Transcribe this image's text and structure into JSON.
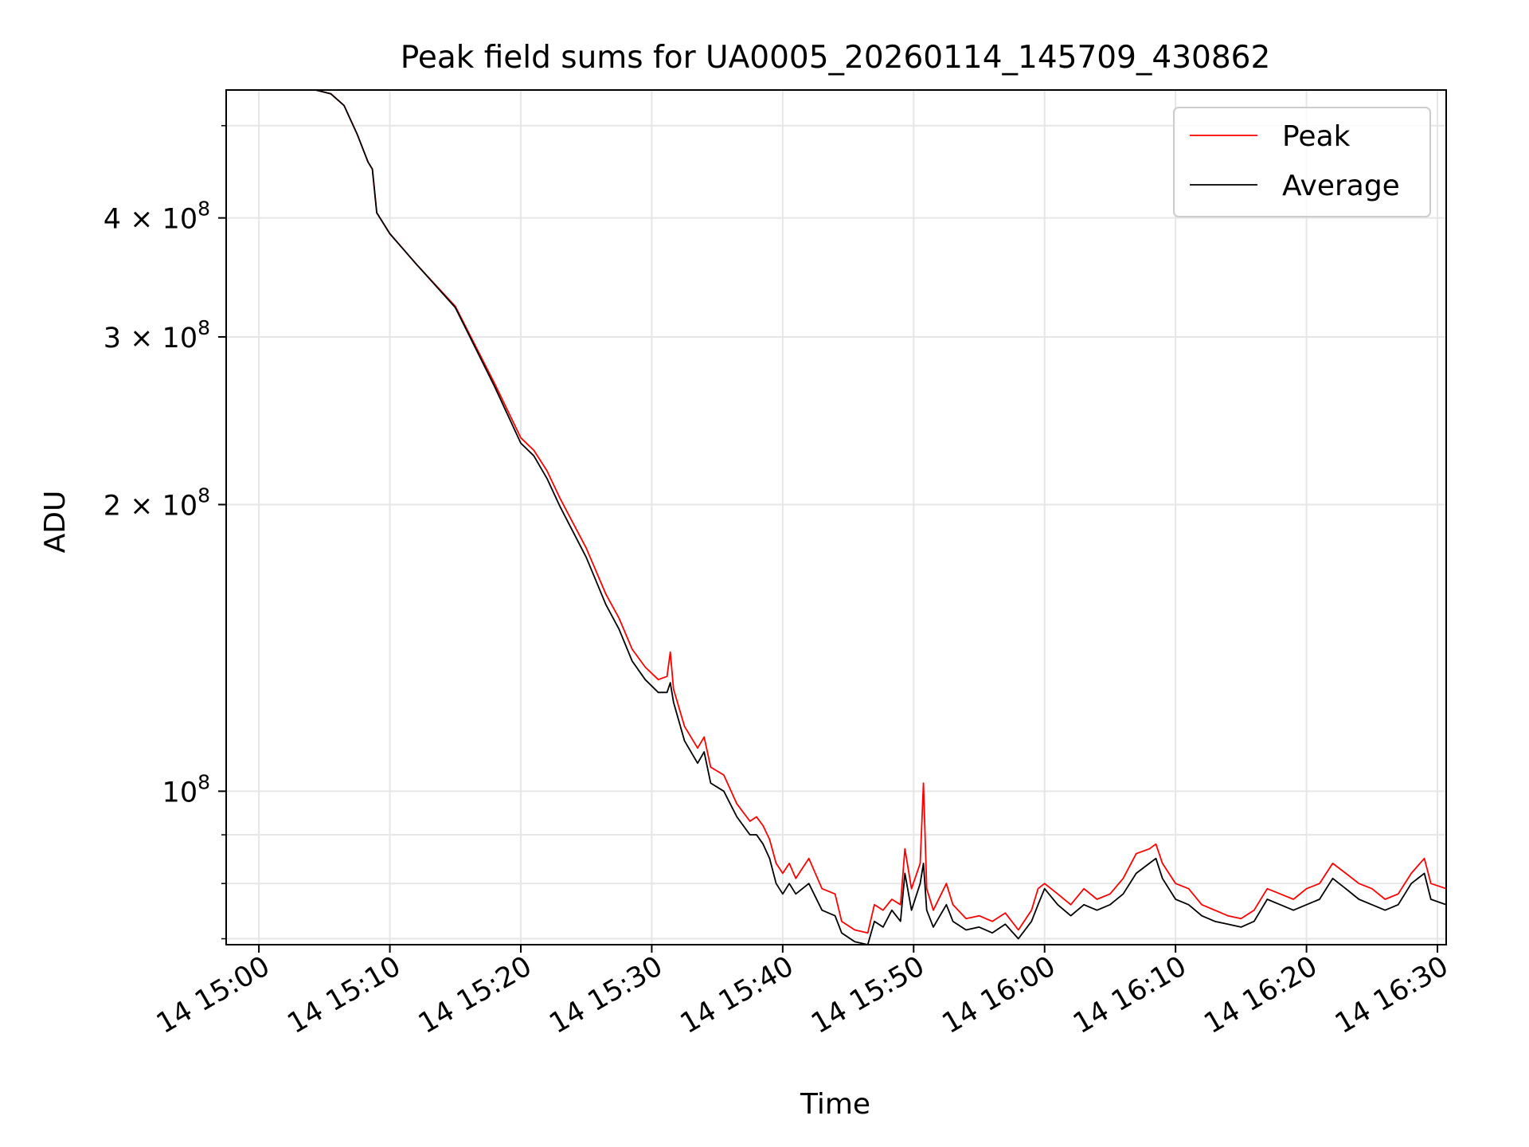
{
  "chart_data": {
    "type": "line",
    "title": "Peak field sums for UA0005_20260114_145709_430862",
    "xlabel": "Time",
    "ylabel": "ADU",
    "x_unit": "datetime",
    "xlim": [
      "2026-01-14T14:57:30",
      "2026-01-14T16:30:40"
    ],
    "ylim": [
      69000000,
      545000000
    ],
    "yscale": "log",
    "grid": true,
    "legend_placement": "top-right",
    "x_ticks": [
      {
        "value": "2026-01-14T15:00:00",
        "label": "14 15:00"
      },
      {
        "value": "2026-01-14T15:10:00",
        "label": "14 15:10"
      },
      {
        "value": "2026-01-14T15:20:00",
        "label": "14 15:20"
      },
      {
        "value": "2026-01-14T15:30:00",
        "label": "14 15:30"
      },
      {
        "value": "2026-01-14T15:40:00",
        "label": "14 15:40"
      },
      {
        "value": "2026-01-14T15:50:00",
        "label": "14 15:50"
      },
      {
        "value": "2026-01-14T16:00:00",
        "label": "14 16:00"
      },
      {
        "value": "2026-01-14T16:10:00",
        "label": "14 16:10"
      },
      {
        "value": "2026-01-14T16:20:00",
        "label": "14 16:20"
      },
      {
        "value": "2026-01-14T16:30:00",
        "label": "14 16:30"
      }
    ],
    "y_major_ticks": [
      {
        "value": 100000000,
        "base": "10",
        "exp": "8"
      },
      {
        "value": 200000000,
        "base": "2 × 10",
        "exp": "8"
      },
      {
        "value": 300000000,
        "base": "3 × 10",
        "exp": "8"
      },
      {
        "value": 400000000,
        "base": "4 × 10",
        "exp": "8"
      }
    ],
    "y_minor_ticks": [
      70000000,
      80000000,
      90000000,
      500000000
    ],
    "series": [
      {
        "name": "Peak",
        "color": "#ff0000",
        "points": [
          [
            "2026-01-14T14:57:30",
            545000000
          ],
          [
            "2026-01-14T15:04:20",
            545000000
          ],
          [
            "2026-01-14T15:05:30",
            540000000
          ],
          [
            "2026-01-14T15:06:30",
            525000000
          ],
          [
            "2026-01-14T15:07:30",
            490000000
          ],
          [
            "2026-01-14T15:08:20",
            458000000
          ],
          [
            "2026-01-14T15:08:40",
            450000000
          ],
          [
            "2026-01-14T15:09:00",
            405000000
          ],
          [
            "2026-01-14T15:10:00",
            385000000
          ],
          [
            "2026-01-14T15:12:00",
            358000000
          ],
          [
            "2026-01-14T15:15:00",
            323000000
          ],
          [
            "2026-01-14T15:18:00",
            268000000
          ],
          [
            "2026-01-14T15:20:00",
            235000000
          ],
          [
            "2026-01-14T15:21:00",
            228000000
          ],
          [
            "2026-01-14T15:22:00",
            217000000
          ],
          [
            "2026-01-14T15:23:00",
            203000000
          ],
          [
            "2026-01-14T15:25:00",
            180000000
          ],
          [
            "2026-01-14T15:26:30",
            161000000
          ],
          [
            "2026-01-14T15:27:30",
            152000000
          ],
          [
            "2026-01-14T15:28:30",
            141000000
          ],
          [
            "2026-01-14T15:29:30",
            135000000
          ],
          [
            "2026-01-14T15:30:30",
            131000000
          ],
          [
            "2026-01-14T15:31:10",
            132000000
          ],
          [
            "2026-01-14T15:31:25",
            140000000
          ],
          [
            "2026-01-14T15:31:40",
            128000000
          ],
          [
            "2026-01-14T15:32:30",
            117000000
          ],
          [
            "2026-01-14T15:33:30",
            111000000
          ],
          [
            "2026-01-14T15:34:00",
            114000000
          ],
          [
            "2026-01-14T15:34:30",
            106000000
          ],
          [
            "2026-01-14T15:35:30",
            104000000
          ],
          [
            "2026-01-14T15:36:30",
            97000000
          ],
          [
            "2026-01-14T15:37:30",
            93000000
          ],
          [
            "2026-01-14T15:38:00",
            94000000
          ],
          [
            "2026-01-14T15:38:30",
            92000000
          ],
          [
            "2026-01-14T15:39:00",
            89000000
          ],
          [
            "2026-01-14T15:39:30",
            84000000
          ],
          [
            "2026-01-14T15:40:00",
            82000000
          ],
          [
            "2026-01-14T15:40:30",
            84000000
          ],
          [
            "2026-01-14T15:41:00",
            81000000
          ],
          [
            "2026-01-14T15:42:00",
            85000000
          ],
          [
            "2026-01-14T15:43:00",
            79000000
          ],
          [
            "2026-01-14T15:44:00",
            78000000
          ],
          [
            "2026-01-14T15:44:30",
            73000000
          ],
          [
            "2026-01-14T15:45:30",
            71500000
          ],
          [
            "2026-01-14T15:46:30",
            71000000
          ],
          [
            "2026-01-14T15:47:00",
            76000000
          ],
          [
            "2026-01-14T15:47:40",
            75000000
          ],
          [
            "2026-01-14T15:48:20",
            77000000
          ],
          [
            "2026-01-14T15:49:00",
            76000000
          ],
          [
            "2026-01-14T15:49:20",
            87000000
          ],
          [
            "2026-01-14T15:49:50",
            79000000
          ],
          [
            "2026-01-14T15:50:30",
            84000000
          ],
          [
            "2026-01-14T15:50:45",
            102000000
          ],
          [
            "2026-01-14T15:51:00",
            79000000
          ],
          [
            "2026-01-14T15:51:30",
            75000000
          ],
          [
            "2026-01-14T15:52:30",
            80000000
          ],
          [
            "2026-01-14T15:53:00",
            76000000
          ],
          [
            "2026-01-14T15:54:00",
            73500000
          ],
          [
            "2026-01-14T15:55:00",
            74000000
          ],
          [
            "2026-01-14T15:56:00",
            73000000
          ],
          [
            "2026-01-14T15:57:00",
            74500000
          ],
          [
            "2026-01-14T15:58:00",
            71500000
          ],
          [
            "2026-01-14T15:59:00",
            75000000
          ],
          [
            "2026-01-14T15:59:30",
            79000000
          ],
          [
            "2026-01-14T16:00:00",
            80000000
          ],
          [
            "2026-01-14T16:01:00",
            78000000
          ],
          [
            "2026-01-14T16:02:00",
            76000000
          ],
          [
            "2026-01-14T16:03:00",
            79000000
          ],
          [
            "2026-01-14T16:04:00",
            77000000
          ],
          [
            "2026-01-14T16:05:00",
            78000000
          ],
          [
            "2026-01-14T16:06:00",
            81000000
          ],
          [
            "2026-01-14T16:07:00",
            86000000
          ],
          [
            "2026-01-14T16:08:00",
            87000000
          ],
          [
            "2026-01-14T16:08:30",
            88000000
          ],
          [
            "2026-01-14T16:09:00",
            84000000
          ],
          [
            "2026-01-14T16:10:00",
            80000000
          ],
          [
            "2026-01-14T16:11:00",
            79000000
          ],
          [
            "2026-01-14T16:12:00",
            76000000
          ],
          [
            "2026-01-14T16:13:00",
            75000000
          ],
          [
            "2026-01-14T16:14:00",
            74000000
          ],
          [
            "2026-01-14T16:15:00",
            73500000
          ],
          [
            "2026-01-14T16:16:00",
            75000000
          ],
          [
            "2026-01-14T16:17:00",
            79000000
          ],
          [
            "2026-01-14T16:18:00",
            78000000
          ],
          [
            "2026-01-14T16:19:00",
            77000000
          ],
          [
            "2026-01-14T16:20:00",
            79000000
          ],
          [
            "2026-01-14T16:21:00",
            80000000
          ],
          [
            "2026-01-14T16:22:00",
            84000000
          ],
          [
            "2026-01-14T16:23:00",
            82000000
          ],
          [
            "2026-01-14T16:24:00",
            80000000
          ],
          [
            "2026-01-14T16:25:00",
            79000000
          ],
          [
            "2026-01-14T16:26:00",
            77000000
          ],
          [
            "2026-01-14T16:27:00",
            78000000
          ],
          [
            "2026-01-14T16:28:00",
            82000000
          ],
          [
            "2026-01-14T16:29:00",
            85000000
          ],
          [
            "2026-01-14T16:29:30",
            80000000
          ],
          [
            "2026-01-14T16:30:40",
            79000000
          ]
        ]
      },
      {
        "name": "Average",
        "color": "#000000",
        "points": [
          [
            "2026-01-14T14:57:30",
            545000000
          ],
          [
            "2026-01-14T15:04:20",
            545000000
          ],
          [
            "2026-01-14T15:05:30",
            540000000
          ],
          [
            "2026-01-14T15:06:30",
            525000000
          ],
          [
            "2026-01-14T15:07:30",
            490000000
          ],
          [
            "2026-01-14T15:08:20",
            458000000
          ],
          [
            "2026-01-14T15:08:40",
            450000000
          ],
          [
            "2026-01-14T15:09:00",
            405000000
          ],
          [
            "2026-01-14T15:10:00",
            385000000
          ],
          [
            "2026-01-14T15:12:00",
            358000000
          ],
          [
            "2026-01-14T15:15:00",
            322000000
          ],
          [
            "2026-01-14T15:18:00",
            266000000
          ],
          [
            "2026-01-14T15:20:00",
            232000000
          ],
          [
            "2026-01-14T15:21:00",
            225000000
          ],
          [
            "2026-01-14T15:22:00",
            213000000
          ],
          [
            "2026-01-14T15:23:00",
            199000000
          ],
          [
            "2026-01-14T15:25:00",
            176000000
          ],
          [
            "2026-01-14T15:26:30",
            157000000
          ],
          [
            "2026-01-14T15:27:30",
            148000000
          ],
          [
            "2026-01-14T15:28:30",
            137000000
          ],
          [
            "2026-01-14T15:29:30",
            131000000
          ],
          [
            "2026-01-14T15:30:30",
            127000000
          ],
          [
            "2026-01-14T15:31:10",
            127000000
          ],
          [
            "2026-01-14T15:31:25",
            130000000
          ],
          [
            "2026-01-14T15:31:40",
            124000000
          ],
          [
            "2026-01-14T15:32:30",
            113000000
          ],
          [
            "2026-01-14T15:33:30",
            107000000
          ],
          [
            "2026-01-14T15:34:00",
            110000000
          ],
          [
            "2026-01-14T15:34:30",
            102000000
          ],
          [
            "2026-01-14T15:35:30",
            100000000
          ],
          [
            "2026-01-14T15:36:30",
            94000000
          ],
          [
            "2026-01-14T15:37:30",
            90000000
          ],
          [
            "2026-01-14T15:38:00",
            90000000
          ],
          [
            "2026-01-14T15:38:30",
            88000000
          ],
          [
            "2026-01-14T15:39:00",
            85000000
          ],
          [
            "2026-01-14T15:39:30",
            80000000
          ],
          [
            "2026-01-14T15:40:00",
            78000000
          ],
          [
            "2026-01-14T15:40:30",
            80000000
          ],
          [
            "2026-01-14T15:41:00",
            78000000
          ],
          [
            "2026-01-14T15:42:00",
            80000000
          ],
          [
            "2026-01-14T15:43:00",
            75000000
          ],
          [
            "2026-01-14T15:44:00",
            74000000
          ],
          [
            "2026-01-14T15:44:30",
            71000000
          ],
          [
            "2026-01-14T15:45:30",
            69500000
          ],
          [
            "2026-01-14T15:46:30",
            69000000
          ],
          [
            "2026-01-14T15:47:00",
            73000000
          ],
          [
            "2026-01-14T15:47:40",
            72000000
          ],
          [
            "2026-01-14T15:48:20",
            75000000
          ],
          [
            "2026-01-14T15:49:00",
            73000000
          ],
          [
            "2026-01-14T15:49:20",
            82000000
          ],
          [
            "2026-01-14T15:49:50",
            75000000
          ],
          [
            "2026-01-14T15:50:30",
            80000000
          ],
          [
            "2026-01-14T15:50:45",
            84000000
          ],
          [
            "2026-01-14T15:51:00",
            75000000
          ],
          [
            "2026-01-14T15:51:30",
            72000000
          ],
          [
            "2026-01-14T15:52:30",
            76000000
          ],
          [
            "2026-01-14T15:53:00",
            73000000
          ],
          [
            "2026-01-14T15:54:00",
            71500000
          ],
          [
            "2026-01-14T15:55:00",
            72000000
          ],
          [
            "2026-01-14T15:56:00",
            71000000
          ],
          [
            "2026-01-14T15:57:00",
            72500000
          ],
          [
            "2026-01-14T15:58:00",
            70000000
          ],
          [
            "2026-01-14T15:59:00",
            73000000
          ],
          [
            "2026-01-14T15:59:30",
            76000000
          ],
          [
            "2026-01-14T16:00:00",
            79000000
          ],
          [
            "2026-01-14T16:01:00",
            76000000
          ],
          [
            "2026-01-14T16:02:00",
            74000000
          ],
          [
            "2026-01-14T16:03:00",
            76000000
          ],
          [
            "2026-01-14T16:04:00",
            75000000
          ],
          [
            "2026-01-14T16:05:00",
            76000000
          ],
          [
            "2026-01-14T16:06:00",
            78000000
          ],
          [
            "2026-01-14T16:07:00",
            82000000
          ],
          [
            "2026-01-14T16:08:00",
            84000000
          ],
          [
            "2026-01-14T16:08:30",
            85000000
          ],
          [
            "2026-01-14T16:09:00",
            81000000
          ],
          [
            "2026-01-14T16:10:00",
            77000000
          ],
          [
            "2026-01-14T16:11:00",
            76000000
          ],
          [
            "2026-01-14T16:12:00",
            74000000
          ],
          [
            "2026-01-14T16:13:00",
            73000000
          ],
          [
            "2026-01-14T16:14:00",
            72500000
          ],
          [
            "2026-01-14T16:15:00",
            72000000
          ],
          [
            "2026-01-14T16:16:00",
            73000000
          ],
          [
            "2026-01-14T16:17:00",
            77000000
          ],
          [
            "2026-01-14T16:18:00",
            76000000
          ],
          [
            "2026-01-14T16:19:00",
            75000000
          ],
          [
            "2026-01-14T16:20:00",
            76000000
          ],
          [
            "2026-01-14T16:21:00",
            77000000
          ],
          [
            "2026-01-14T16:22:00",
            81000000
          ],
          [
            "2026-01-14T16:23:00",
            79000000
          ],
          [
            "2026-01-14T16:24:00",
            77000000
          ],
          [
            "2026-01-14T16:25:00",
            76000000
          ],
          [
            "2026-01-14T16:26:00",
            75000000
          ],
          [
            "2026-01-14T16:27:00",
            76000000
          ],
          [
            "2026-01-14T16:28:00",
            80000000
          ],
          [
            "2026-01-14T16:29:00",
            82000000
          ],
          [
            "2026-01-14T16:29:30",
            77000000
          ],
          [
            "2026-01-14T16:30:40",
            76000000
          ]
        ]
      }
    ]
  }
}
